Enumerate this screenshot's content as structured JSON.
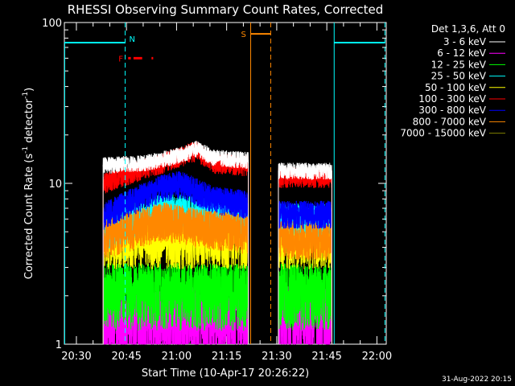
{
  "chart_data": {
    "type": "line",
    "title": "RHESSI Observing Summary Count Rates, Corrected",
    "xlabel": "Start Time (10-Apr-17 20:26:22)",
    "ylabel": "Corrected Count Rate (s",
    "ylabel_sup": "-1",
    "ylabel_mid": " detector",
    "ylabel_sup2": "-1",
    "ylabel_end": ")",
    "yscale": "log",
    "ylim": [
      1,
      100
    ],
    "yticks": [
      {
        "v": 1,
        "label": "1"
      },
      {
        "v": 10,
        "label": "10"
      },
      {
        "v": 100,
        "label": "100"
      }
    ],
    "xlim_minutes": [
      20.4,
      116.8
    ],
    "xticks": [
      {
        "t": 24,
        "label": "20:30"
      },
      {
        "t": 39,
        "label": "20:45"
      },
      {
        "t": 54,
        "label": "21:00"
      },
      {
        "t": 69,
        "label": "21:15"
      },
      {
        "t": 84,
        "label": "21:30"
      },
      {
        "t": 99,
        "label": "21:45"
      },
      {
        "t": 114,
        "label": "22:00"
      }
    ],
    "gaps_minutes": [
      [
        75.8,
        84.2
      ]
    ],
    "legend_header": "Det 1,3,6, Att 0",
    "legend_placement": "right",
    "series": [
      {
        "name": "3 - 6 keV",
        "color": "#ffffff",
        "segments": [
          {
            "t0": 32,
            "t1": 75.5,
            "points": [
              [
                32,
                13
              ],
              [
                45,
                13.5
              ],
              [
                55,
                15
              ],
              [
                60,
                16.5
              ],
              [
                65,
                14.5
              ],
              [
                75,
                14
              ]
            ]
          },
          {
            "t0": 84.5,
            "t1": 100.5,
            "points": [
              [
                84.5,
                12
              ],
              [
                100.5,
                12
              ]
            ]
          }
        ]
      },
      {
        "name": "6 - 12 keV",
        "color": "#ff00ff",
        "segments": [
          {
            "t0": 32,
            "t1": 75.5,
            "points": [
              [
                32,
                1.4
              ],
              [
                75.5,
                1.5
              ]
            ]
          },
          {
            "t0": 84.5,
            "t1": 100.5,
            "points": [
              [
                84.5,
                1.5
              ],
              [
                100.5,
                1.5
              ]
            ]
          }
        ]
      },
      {
        "name": "12 - 25 keV",
        "color": "#00ff00",
        "segments": [
          {
            "t0": 32,
            "t1": 75.5,
            "points": [
              [
                32,
                2.2
              ],
              [
                75.5,
                2.2
              ]
            ]
          },
          {
            "t0": 84.5,
            "t1": 100.5,
            "points": [
              [
                84.5,
                2.2
              ],
              [
                100.5,
                2.2
              ]
            ]
          }
        ]
      },
      {
        "name": "25 - 50 keV",
        "color": "#00ffff",
        "segments": [
          {
            "t0": 32,
            "t1": 75.5,
            "points": [
              [
                32,
                5
              ],
              [
                50,
                7
              ],
              [
                75.5,
                6
              ]
            ]
          },
          {
            "t0": 84.5,
            "t1": 100.5,
            "points": [
              [
                84.5,
                6
              ],
              [
                100.5,
                6
              ]
            ]
          }
        ]
      },
      {
        "name": "50 - 100 keV",
        "color": "#ffff00",
        "segments": [
          {
            "t0": 32,
            "t1": 75.5,
            "points": [
              [
                32,
                4.5
              ],
              [
                75.5,
                4.5
              ]
            ]
          },
          {
            "t0": 84.5,
            "t1": 100.5,
            "points": [
              [
                84.5,
                4.5
              ],
              [
                100.5,
                4.5
              ]
            ]
          }
        ]
      },
      {
        "name": "100 - 300 keV",
        "color": "#ff0000",
        "segments": [
          {
            "t0": 32,
            "t1": 75.5,
            "points": [
              [
                32,
                10
              ],
              [
                50,
                13.5
              ],
              [
                60,
                16
              ],
              [
                65,
                13.5
              ],
              [
                75,
                13
              ]
            ]
          },
          {
            "t0": 84.5,
            "t1": 100.5,
            "points": [
              [
                84.5,
                11
              ],
              [
                100.5,
                11
              ]
            ]
          }
        ]
      },
      {
        "name": "300 - 800 keV",
        "color": "#0000ff",
        "segments": [
          {
            "t0": 32,
            "t1": 75.5,
            "points": [
              [
                32,
                6.3
              ],
              [
                50,
                9.5
              ],
              [
                55,
                10
              ],
              [
                65,
                8
              ],
              [
                75,
                7.5
              ]
            ]
          },
          {
            "t0": 84.5,
            "t1": 100.5,
            "points": [
              [
                84.5,
                6.5
              ],
              [
                100.5,
                6.5
              ]
            ]
          }
        ]
      },
      {
        "name": "800 - 7000 keV",
        "color": "#ff8800",
        "segments": [
          {
            "t0": 32,
            "t1": 75.5,
            "points": [
              [
                32,
                4.6
              ],
              [
                50,
                6
              ],
              [
                60,
                5.5
              ],
              [
                75,
                5
              ]
            ]
          },
          {
            "t0": 84.5,
            "t1": 100.5,
            "points": [
              [
                84.5,
                4.6
              ],
              [
                100.5,
                4.6
              ]
            ]
          }
        ]
      },
      {
        "name": "7000 - 15000 keV",
        "color": "#808000",
        "segments": []
      }
    ],
    "flag_bars": [
      {
        "label": "N",
        "color": "#00ffff",
        "y": 75,
        "segments": [
          [
            20.4,
            38.6
          ],
          [
            101.2,
            116.4
          ]
        ],
        "dashed_t": [
          38.6,
          116.4
        ],
        "solid_t": [
          101.2
        ]
      },
      {
        "label": "S",
        "color": "#ff8800",
        "y": 85,
        "segments": [
          [
            76.2,
            82.2
          ]
        ],
        "dashed_t": [
          82.2
        ],
        "solid_t": [
          76.2
        ]
      },
      {
        "label": "F",
        "color": "#ff0000",
        "y": 60,
        "segments": [
          [
            39.5,
            40.3
          ],
          [
            41.1,
            43.7
          ],
          [
            46.5,
            47.0
          ]
        ]
      }
    ],
    "footer_date": "31-Aug-2022 20:15"
  }
}
